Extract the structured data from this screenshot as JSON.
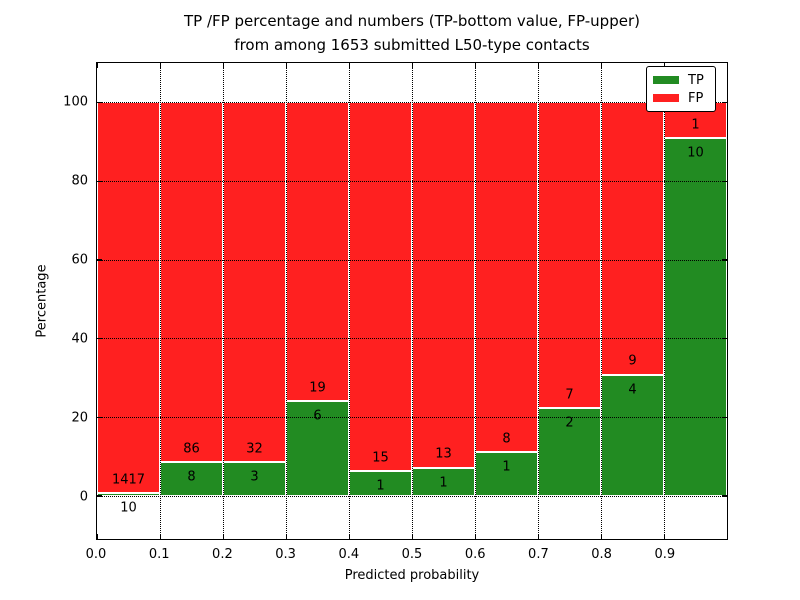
{
  "figure": {
    "title_line1": "TP /FP percentage and numbers (TP-bottom value, FP-upper)",
    "title_line2": "from among 1653 submitted L50-type contacts",
    "xlabel": "Predicted probability",
    "ylabel": "Percentage"
  },
  "legend": {
    "items": [
      {
        "label": "TP",
        "color": "#228b22"
      },
      {
        "label": "FP",
        "color": "#ff2020"
      }
    ]
  },
  "chart_data": {
    "type": "bar",
    "stacked": true,
    "normalized_to_percent": true,
    "title": "TP /FP percentage and numbers (TP-bottom value, FP-upper) from among 1653 submitted L50-type contacts",
    "xlabel": "Predicted probability",
    "ylabel": "Percentage",
    "total_contacts": 1653,
    "bin_width": 0.1,
    "categories": [
      "0.0-0.1",
      "0.1-0.2",
      "0.2-0.3",
      "0.3-0.4",
      "0.4-0.5",
      "0.5-0.6",
      "0.6-0.7",
      "0.7-0.8",
      "0.8-0.9",
      "0.9-1.0"
    ],
    "series": [
      {
        "name": "TP",
        "color": "#228b22",
        "counts": [
          10,
          8,
          3,
          6,
          1,
          1,
          1,
          2,
          4,
          10
        ]
      },
      {
        "name": "FP",
        "color": "#ff2020",
        "counts": [
          1417,
          86,
          32,
          19,
          15,
          13,
          8,
          7,
          9,
          1
        ]
      }
    ],
    "tp_percent": [
      0.7,
      8.5,
      8.6,
      24.0,
      6.2,
      7.1,
      11.1,
      22.2,
      30.8,
      90.9
    ],
    "x_tick_labels": [
      "0.0",
      "0.1",
      "0.2",
      "0.3",
      "0.4",
      "0.5",
      "0.6",
      "0.7",
      "0.8",
      "0.9"
    ],
    "y_tick_values": [
      0,
      20,
      40,
      60,
      80,
      100
    ],
    "xlim": [
      0.0,
      1.0
    ],
    "ylim": [
      -11,
      110
    ],
    "grid": "dotted",
    "legend_position": "upper right"
  }
}
